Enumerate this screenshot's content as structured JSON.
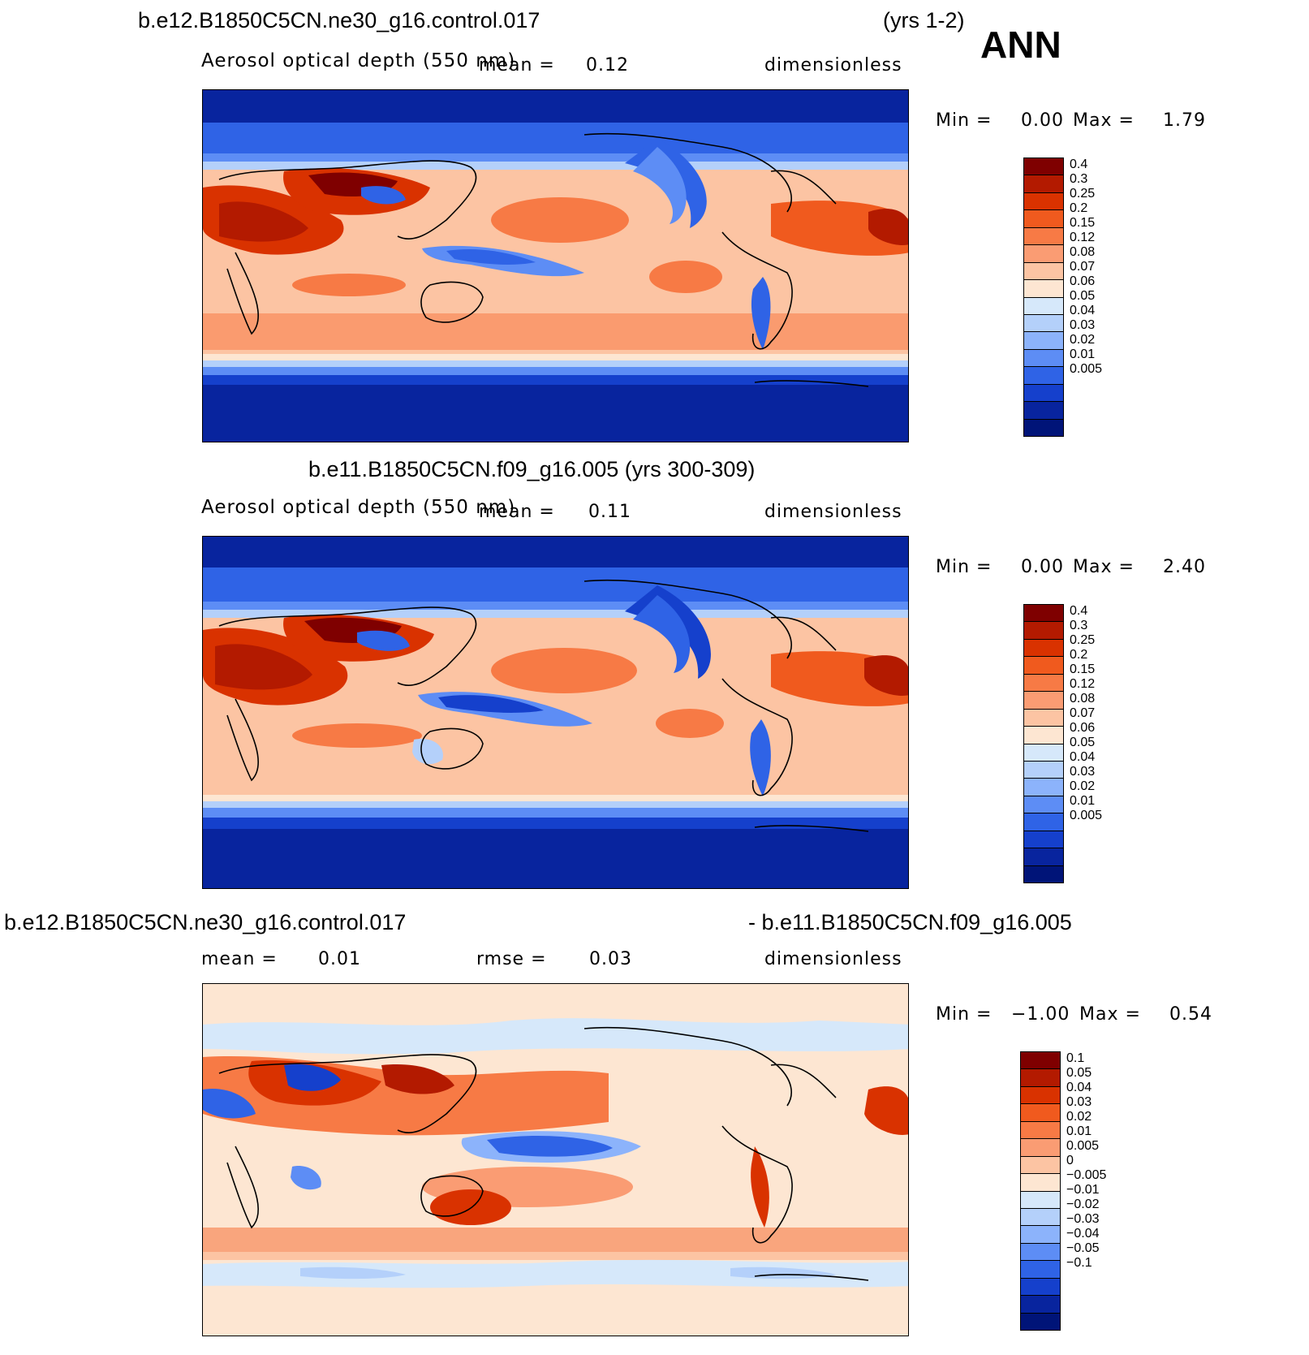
{
  "figure": {
    "season": "ANN",
    "top_case": "b.e12.B1850C5CN.ne30_g16.control.017",
    "top_years": "(yrs 1-2)",
    "mid_case": "b.e11.B1850C5CN.f09_g16.005 (yrs 300-309)",
    "diff_case_left": "b.e12.B1850C5CN.ne30_g16.control.017",
    "diff_case_right": "- b.e11.B1850C5CN.f09_g16.005"
  },
  "panels": [
    {
      "id": "top",
      "variable": "Aerosol optical depth (550 nm)",
      "mean_label": "mean =",
      "mean_value": "0.12",
      "units": "dimensionless",
      "min_label": "Min =",
      "min_value": "0.00",
      "max_label": "Max =",
      "max_value": "1.79",
      "levels": [
        "0.4",
        "0.3",
        "0.25",
        "0.2",
        "0.15",
        "0.12",
        "0.08",
        "0.07",
        "0.06",
        "0.05",
        "0.04",
        "0.03",
        "0.02",
        "0.01",
        "0.005"
      ],
      "colors": [
        "#7f0000",
        "#b31a00",
        "#d93200",
        "#f05a1e",
        "#f77a45",
        "#fa9c73",
        "#fcc4a3",
        "#fde6d2",
        "#d6e8fa",
        "#b4d0fa",
        "#8cb3fb",
        "#5d8df5",
        "#2f63e6",
        "#1540cc",
        "#08249e",
        "#001478"
      ]
    },
    {
      "id": "mid",
      "variable": "Aerosol optical depth (550 nm)",
      "mean_label": "mean =",
      "mean_value": "0.11",
      "units": "dimensionless",
      "min_label": "Min =",
      "min_value": "0.00",
      "max_label": "Max =",
      "max_value": "2.40",
      "levels": [
        "0.4",
        "0.3",
        "0.25",
        "0.2",
        "0.15",
        "0.12",
        "0.08",
        "0.07",
        "0.06",
        "0.05",
        "0.04",
        "0.03",
        "0.02",
        "0.01",
        "0.005"
      ],
      "colors": [
        "#7f0000",
        "#b31a00",
        "#d93200",
        "#f05a1e",
        "#f77a45",
        "#fa9c73",
        "#fcc4a3",
        "#fde6d2",
        "#d6e8fa",
        "#b4d0fa",
        "#8cb3fb",
        "#5d8df5",
        "#2f63e6",
        "#1540cc",
        "#08249e",
        "#001478"
      ]
    },
    {
      "id": "diff",
      "mean_label": "mean =",
      "mean_value": "0.01",
      "rmse_label": "rmse =",
      "rmse_value": "0.03",
      "units": "dimensionless",
      "min_label": "Min =",
      "min_value": "−1.00",
      "max_label": "Max =",
      "max_value": "0.54",
      "levels": [
        "0.1",
        "0.05",
        "0.04",
        "0.03",
        "0.02",
        "0.01",
        "0.005",
        "0",
        "−0.005",
        "−0.01",
        "−0.02",
        "−0.03",
        "−0.04",
        "−0.05",
        "−0.1"
      ],
      "colors": [
        "#7f0000",
        "#b31a00",
        "#d93200",
        "#f05a1e",
        "#f77a45",
        "#fa9c73",
        "#fcc4a3",
        "#fde6d2",
        "#d6e8fa",
        "#b4d0fa",
        "#8cb3fb",
        "#5d8df5",
        "#2f63e6",
        "#1540cc",
        "#08249e",
        "#001478"
      ]
    }
  ]
}
